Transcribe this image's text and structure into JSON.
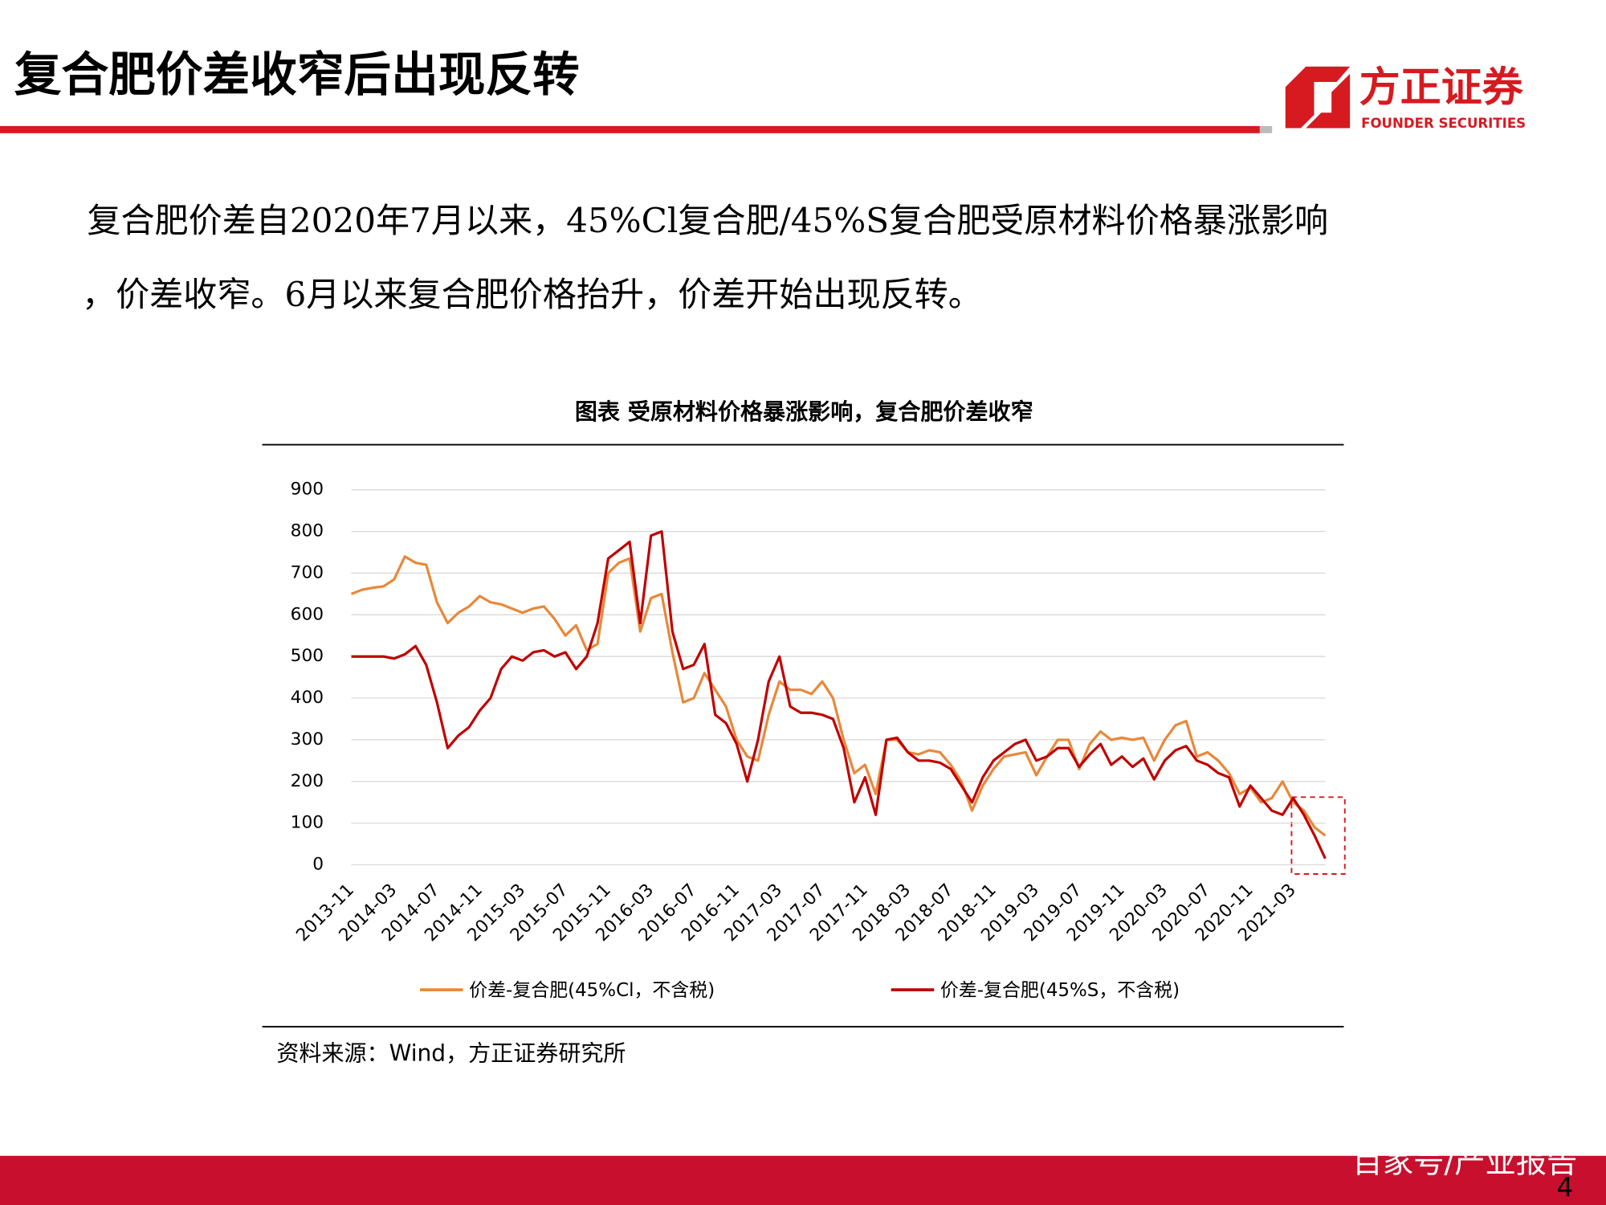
{
  "header": {
    "title": "复合肥价差收窄后出现反转",
    "logo_cn": "方正证券",
    "logo_en": "FOUNDER SECURITIES"
  },
  "body_text": [
    "复合肥价差自2020年7月以来，45%Cl复合肥/45%S复合肥受原材料价格暴涨影响",
    "，价差收窄。6月以来复合肥价格抬升，价差开始出现反转。"
  ],
  "chart_data": {
    "type": "line",
    "title": "图表 受原材料价格暴涨影响，复合肥价差收窄",
    "categories": [
      "2013-11",
      null,
      null,
      null,
      "2014-03",
      null,
      null,
      null,
      "2014-07",
      null,
      null,
      null,
      "2014-11",
      null,
      null,
      null,
      "2015-03",
      null,
      null,
      null,
      "2015-07",
      null,
      null,
      null,
      "2015-11",
      null,
      null,
      null,
      "2016-03",
      null,
      null,
      null,
      "2016-07",
      null,
      null,
      null,
      "2016-11",
      null,
      null,
      null,
      "2017-03",
      null,
      null,
      null,
      "2017-07",
      null,
      null,
      null,
      "2017-11",
      null,
      null,
      null,
      "2018-03",
      null,
      null,
      null,
      "2018-07",
      null,
      null,
      null,
      "2018-11",
      null,
      null,
      null,
      "2019-03",
      null,
      null,
      null,
      "2019-07",
      null,
      null,
      null,
      "2019-11",
      null,
      null,
      null,
      "2020-03",
      null,
      null,
      null,
      "2020-07",
      null,
      null,
      null,
      "2020-11",
      null,
      null,
      null,
      "2021-03",
      null,
      null,
      null
    ],
    "series": [
      {
        "name": "价差-复合肥(45%Cl，不含税)",
        "color": "#e8883a",
        "values": [
          650,
          660,
          665,
          668,
          685,
          740,
          725,
          720,
          630,
          580,
          605,
          620,
          645,
          630,
          625,
          615,
          605,
          615,
          620,
          590,
          550,
          575,
          515,
          530,
          700,
          725,
          735,
          560,
          640,
          650,
          510,
          390,
          400,
          460,
          420,
          380,
          300,
          260,
          250,
          360,
          440,
          420,
          420,
          410,
          440,
          400,
          300,
          220,
          240,
          170,
          300,
          300,
          270,
          265,
          275,
          270,
          240,
          200,
          130,
          190,
          230,
          260,
          265,
          270,
          215,
          260,
          300,
          300,
          230,
          290,
          320,
          300,
          305,
          300,
          305,
          250,
          300,
          335,
          345,
          260,
          270,
          250,
          220,
          170,
          185,
          150,
          160,
          200,
          150,
          130,
          90,
          70
        ]
      },
      {
        "name": "价差-复合肥(45%S，不含税)",
        "color": "#c00000",
        "values": [
          500,
          500,
          500,
          500,
          495,
          505,
          525,
          480,
          390,
          280,
          310,
          330,
          370,
          400,
          470,
          500,
          490,
          510,
          515,
          500,
          510,
          470,
          500,
          580,
          735,
          755,
          775,
          580,
          790,
          800,
          560,
          470,
          480,
          530,
          360,
          340,
          290,
          200,
          300,
          440,
          500,
          380,
          365,
          365,
          360,
          350,
          280,
          150,
          210,
          120,
          300,
          305,
          270,
          250,
          250,
          245,
          230,
          190,
          150,
          210,
          250,
          270,
          290,
          300,
          250,
          260,
          280,
          280,
          235,
          265,
          290,
          240,
          260,
          235,
          255,
          205,
          250,
          275,
          285,
          250,
          240,
          220,
          210,
          140,
          190,
          160,
          130,
          120,
          160,
          120,
          70,
          15
        ]
      }
    ],
    "ylim": [
      0,
      900
    ],
    "yticks": [
      0,
      100,
      200,
      300,
      400,
      500,
      600,
      700,
      800,
      900
    ],
    "grid": true
  },
  "source": "资料来源：Wind，方正证券研究所",
  "footer": {
    "watermark": "百家号/产业报告",
    "page": "4"
  }
}
